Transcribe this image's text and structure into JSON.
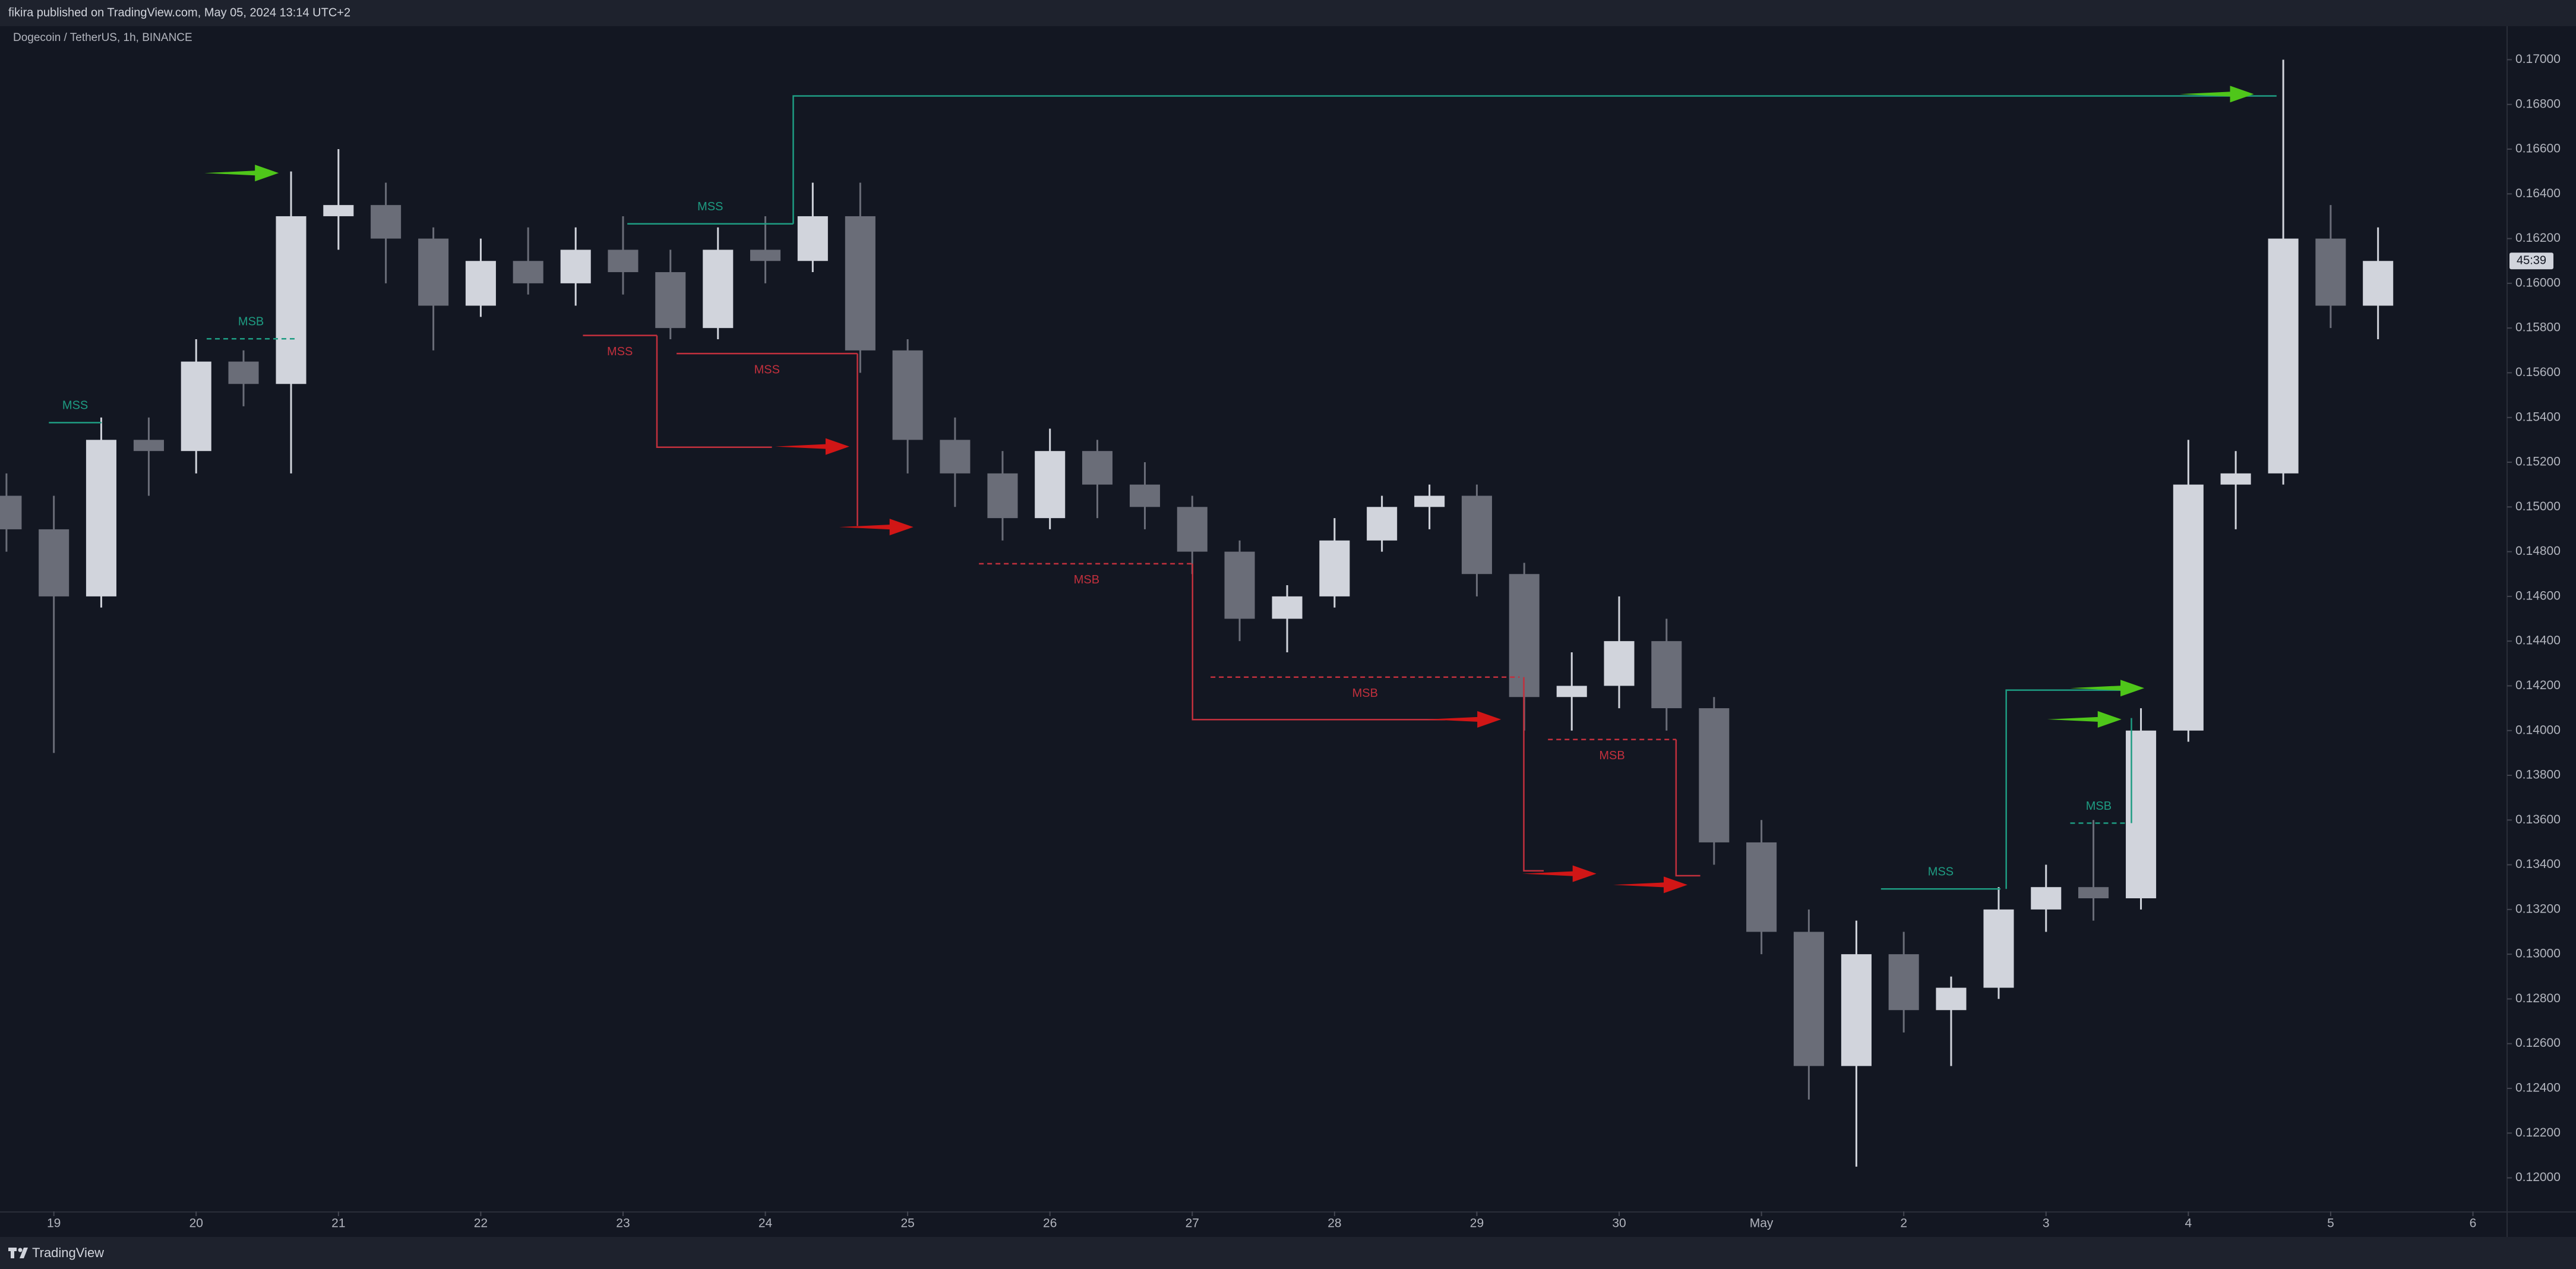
{
  "header": {
    "text": "fikira published on TradingView.com, May 05, 2024 13:14 UTC+2"
  },
  "footer": {
    "brand": "TradingView"
  },
  "chart_data": {
    "type": "candlestick",
    "title": "Dogecoin / TetherUS, 1h, BINANCE",
    "up_color": "#d1d4dc",
    "down_color": "#6a6d78",
    "x": [
      -0.333,
      0,
      0.333,
      0.667,
      1,
      1.333,
      1.667,
      2,
      2.333,
      2.667,
      3,
      3.333,
      3.667,
      4,
      4.333,
      4.667,
      5,
      5.333,
      5.667,
      6,
      6.333,
      6.667,
      7,
      7.333,
      7.667,
      8,
      8.333,
      8.667,
      9,
      9.333,
      9.667,
      10,
      10.333,
      10.667,
      11,
      11.333,
      11.667,
      12,
      12.333,
      12.667,
      13,
      13.333,
      13.667,
      14,
      14.333,
      14.667,
      15,
      15.333,
      15.667,
      16,
      16.333
    ],
    "open": [
      0.1505,
      0.149,
      0.146,
      0.153,
      0.1525,
      0.1565,
      0.1555,
      0.163,
      0.1635,
      0.162,
      0.159,
      0.161,
      0.16,
      0.1615,
      0.1605,
      0.158,
      0.1615,
      0.161,
      0.163,
      0.157,
      0.153,
      0.1515,
      0.1495,
      0.1525,
      0.151,
      0.15,
      0.148,
      0.145,
      0.146,
      0.1485,
      0.15,
      0.1505,
      0.147,
      0.1415,
      0.142,
      0.144,
      0.141,
      0.135,
      0.131,
      0.125,
      0.13,
      0.1275,
      0.1285,
      0.132,
      0.133,
      0.1325,
      0.14,
      0.151,
      0.1515,
      0.162,
      0.159
    ],
    "high": [
      0.1515,
      0.1505,
      0.154,
      0.154,
      0.1575,
      0.157,
      0.165,
      0.166,
      0.1645,
      0.1625,
      0.162,
      0.1625,
      0.1625,
      0.163,
      0.1615,
      0.1625,
      0.163,
      0.1645,
      0.1645,
      0.1575,
      0.154,
      0.1525,
      0.1535,
      0.153,
      0.152,
      0.1505,
      0.1485,
      0.1465,
      0.1495,
      0.1505,
      0.151,
      0.151,
      0.1475,
      0.1435,
      0.146,
      0.145,
      0.1415,
      0.136,
      0.132,
      0.1315,
      0.131,
      0.129,
      0.133,
      0.134,
      0.136,
      0.141,
      0.153,
      0.1525,
      0.17,
      0.1635,
      0.1625
    ],
    "low": [
      0.148,
      0.139,
      0.1455,
      0.1505,
      0.1515,
      0.1545,
      0.1515,
      0.1615,
      0.16,
      0.157,
      0.1585,
      0.1595,
      0.159,
      0.1595,
      0.1575,
      0.1575,
      0.16,
      0.1605,
      0.156,
      0.1515,
      0.15,
      0.1485,
      0.149,
      0.1495,
      0.149,
      0.147,
      0.144,
      0.1435,
      0.1455,
      0.148,
      0.149,
      0.146,
      0.14,
      0.14,
      0.141,
      0.14,
      0.134,
      0.13,
      0.1235,
      0.1205,
      0.1265,
      0.125,
      0.128,
      0.131,
      0.1315,
      0.132,
      0.1395,
      0.149,
      0.151,
      0.158,
      0.1575
    ],
    "close": [
      0.149,
      0.146,
      0.153,
      0.1525,
      0.1565,
      0.1555,
      0.163,
      0.1635,
      0.162,
      0.159,
      0.161,
      0.16,
      0.1615,
      0.1605,
      0.158,
      0.1615,
      0.161,
      0.163,
      0.157,
      0.153,
      0.1515,
      0.1495,
      0.1525,
      0.151,
      0.15,
      0.148,
      0.145,
      0.146,
      0.1485,
      0.15,
      0.1505,
      0.147,
      0.1415,
      0.142,
      0.144,
      0.141,
      0.135,
      0.131,
      0.125,
      0.13,
      0.1275,
      0.1285,
      0.132,
      0.133,
      0.1325,
      0.14,
      0.151,
      0.1515,
      0.162,
      0.159,
      0.161
    ],
    "countdown_label": "45:39",
    "xlim": [
      -0.32,
      17.24
    ],
    "xticks": [
      {
        "value": 0,
        "label": "19"
      },
      {
        "value": 1,
        "label": "20"
      },
      {
        "value": 2,
        "label": "21"
      },
      {
        "value": 3,
        "label": "22"
      },
      {
        "value": 4,
        "label": "23"
      },
      {
        "value": 5,
        "label": "24"
      },
      {
        "value": 6,
        "label": "25"
      },
      {
        "value": 7,
        "label": "26"
      },
      {
        "value": 8,
        "label": "27"
      },
      {
        "value": 9,
        "label": "28"
      },
      {
        "value": 10,
        "label": "29"
      },
      {
        "value": 11,
        "label": "30"
      },
      {
        "value": 12,
        "label": "May"
      },
      {
        "value": 13,
        "label": "2"
      },
      {
        "value": 14,
        "label": "3"
      },
      {
        "value": 15,
        "label": "4"
      },
      {
        "value": 16,
        "label": "5"
      },
      {
        "value": 17,
        "label": "6"
      }
    ],
    "ylim": [
      0.1185,
      0.1715
    ],
    "yticks": [
      {
        "value": 0.12,
        "label": "0.12000"
      },
      {
        "value": 0.122,
        "label": "0.12200"
      },
      {
        "value": 0.124,
        "label": "0.12400"
      },
      {
        "value": 0.126,
        "label": "0.12600"
      },
      {
        "value": 0.128,
        "label": "0.12800"
      },
      {
        "value": 0.13,
        "label": "0.13000"
      },
      {
        "value": 0.132,
        "label": "0.13200"
      },
      {
        "value": 0.134,
        "label": "0.13400"
      },
      {
        "value": 0.136,
        "label": "0.13600"
      },
      {
        "value": 0.138,
        "label": "0.13800"
      },
      {
        "value": 0.14,
        "label": "0.14000"
      },
      {
        "value": 0.142,
        "label": "0.14200"
      },
      {
        "value": 0.144,
        "label": "0.14400"
      },
      {
        "value": 0.146,
        "label": "0.14600"
      },
      {
        "value": 0.148,
        "label": "0.14800"
      },
      {
        "value": 0.15,
        "label": "0.15000"
      },
      {
        "value": 0.152,
        "label": "0.15200"
      },
      {
        "value": 0.154,
        "label": "0.15400"
      },
      {
        "value": 0.156,
        "label": "0.15600"
      },
      {
        "value": 0.158,
        "label": "0.15800"
      },
      {
        "value": 0.16,
        "label": "0.16000"
      },
      {
        "value": 0.162,
        "label": "0.16200"
      },
      {
        "value": 0.164,
        "label": "0.16400"
      },
      {
        "value": 0.166,
        "label": "0.16600"
      },
      {
        "value": 0.168,
        "label": "0.16800"
      },
      {
        "value": 0.17,
        "label": "0.17000"
      }
    ],
    "grid": false,
    "levels": [
      {
        "label": "MSS",
        "color": "#1e9c82",
        "dashed": false,
        "label_position": "above",
        "points": [
          [
            -0.035,
            0.15377
          ],
          [
            0.335,
            0.15377
          ]
        ]
      },
      {
        "label": "MSB",
        "color": "#1e9c82",
        "dashed": true,
        "label_position": "above",
        "points": [
          [
            1.074,
            0.15752
          ],
          [
            1.697,
            0.15752
          ]
        ]
      },
      {
        "label": "MSS",
        "color": "#1e9c82",
        "dashed": false,
        "label_position": "above",
        "points": [
          [
            4.03,
            0.16266
          ],
          [
            5.196,
            0.16266
          ]
        ]
      },
      {
        "color": "#1e9c82",
        "dashed": false,
        "points": [
          [
            5.196,
            0.16266
          ],
          [
            5.196,
            0.16838
          ],
          [
            15.62,
            0.16838
          ]
        ]
      },
      {
        "label": "MSS",
        "color": "#c2303d",
        "dashed": false,
        "label_position": "below",
        "points": [
          [
            3.718,
            0.15767
          ],
          [
            4.238,
            0.15767
          ]
        ]
      },
      {
        "color": "#c2303d",
        "dashed": false,
        "points": [
          [
            4.238,
            0.15767
          ],
          [
            4.238,
            0.15267
          ],
          [
            5.046,
            0.15267
          ]
        ]
      },
      {
        "label": "MSS",
        "color": "#c2303d",
        "dashed": false,
        "label_position": "below",
        "points": [
          [
            4.376,
            0.15686
          ],
          [
            5.647,
            0.15686
          ]
        ]
      },
      {
        "color": "#c2303d",
        "dashed": false,
        "points": [
          [
            5.647,
            0.15686
          ],
          [
            5.647,
            0.14915
          ]
        ]
      },
      {
        "label": "MSB",
        "color": "#c2303d",
        "dashed": true,
        "label_position": "below",
        "points": [
          [
            6.501,
            0.14746
          ],
          [
            8.014,
            0.14746
          ]
        ]
      },
      {
        "color": "#c2303d",
        "dashed": false,
        "points": [
          [
            8.002,
            0.14746
          ],
          [
            8.002,
            0.14049
          ],
          [
            9.78,
            0.14049
          ]
        ]
      },
      {
        "label": "MSB",
        "color": "#c2303d",
        "dashed": true,
        "label_position": "below",
        "points": [
          [
            8.129,
            0.14239
          ],
          [
            10.3,
            0.14239
          ]
        ]
      },
      {
        "color": "#c2303d",
        "dashed": false,
        "points": [
          [
            10.33,
            0.14239
          ],
          [
            10.33,
            0.13373
          ],
          [
            10.47,
            0.13373
          ]
        ]
      },
      {
        "label": "MSB",
        "color": "#c2303d",
        "dashed": true,
        "label_position": "below",
        "points": [
          [
            10.5,
            0.1396
          ],
          [
            11.4,
            0.1396
          ]
        ]
      },
      {
        "color": "#c2303d",
        "dashed": false,
        "points": [
          [
            11.4,
            0.1396
          ],
          [
            11.4,
            0.13351
          ],
          [
            11.57,
            0.13351
          ]
        ]
      },
      {
        "label": "MSS",
        "color": "#1e9c82",
        "dashed": false,
        "label_position": "above",
        "points": [
          [
            12.84,
            0.13292
          ],
          [
            13.68,
            0.13292
          ]
        ]
      },
      {
        "color": "#1e9c82",
        "dashed": false,
        "points": [
          [
            13.72,
            0.13292
          ],
          [
            13.72,
            0.14181
          ],
          [
            14.63,
            0.14181
          ]
        ]
      },
      {
        "label": "MSB",
        "color": "#1e9c82",
        "dashed": true,
        "label_position": "above",
        "points": [
          [
            14.17,
            0.13586
          ],
          [
            14.57,
            0.13586
          ]
        ]
      },
      {
        "color": "#1e9c82",
        "dashed": false,
        "points": [
          [
            14.6,
            0.13586
          ],
          [
            14.6,
            0.14056
          ]
        ]
      }
    ],
    "arrows": [
      {
        "color": "#4fc61a",
        "x": 1.58,
        "y": 0.16493
      },
      {
        "color": "#4fc61a",
        "x": 15.46,
        "y": 0.16846
      },
      {
        "color": "#d11616",
        "x": 5.59,
        "y": 0.1527
      },
      {
        "color": "#d11616",
        "x": 6.04,
        "y": 0.1491
      },
      {
        "color": "#d11616",
        "x": 10.17,
        "y": 0.1405
      },
      {
        "color": "#d11616",
        "x": 10.84,
        "y": 0.1336
      },
      {
        "color": "#d11616",
        "x": 11.48,
        "y": 0.1331
      },
      {
        "color": "#4fc61a",
        "x": 14.69,
        "y": 0.1419
      },
      {
        "color": "#4fc61a",
        "x": 14.53,
        "y": 0.1405
      }
    ]
  }
}
